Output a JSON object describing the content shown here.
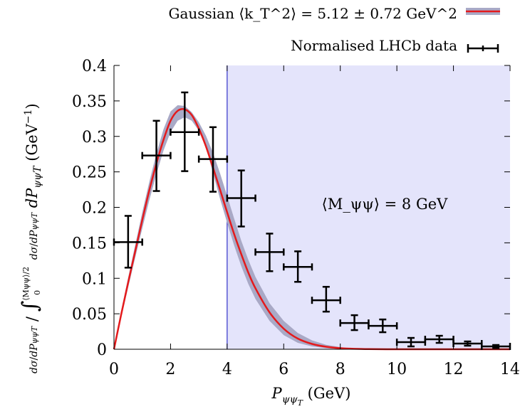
{
  "chart_data": {
    "type": "line",
    "xlabel": "P_{ψψT} (GeV)",
    "ylabel": "dσ/dP_{ψψT} / ∫_0^{⟨Mψψ⟩/2} dσ/dP_{ψψT} dP_{ψψT} (GeV⁻¹)",
    "xlim": [
      0,
      14
    ],
    "ylim": [
      0,
      0.4
    ],
    "x_ticks": [
      "0",
      "2",
      "4",
      "6",
      "8",
      "10",
      "12",
      "14"
    ],
    "y_ticks": [
      "0",
      "0.05",
      "0.1",
      "0.15",
      "0.2",
      "0.25",
      "0.3",
      "0.35",
      "0.4"
    ],
    "grid": false,
    "legend_position": "top-right",
    "legend": {
      "model": "Gaussian ⟨k_T^2⟩ = 5.12 ± 0.72 GeV^2",
      "data": "Normalised LHCb data"
    },
    "shaded_region": {
      "x_from": 4,
      "x_to": 14,
      "color": "#e4e4fb",
      "edge_color": "#3232c8"
    },
    "annotation": "⟨M_ψψ⟩ = 8 GeV",
    "model_curve": {
      "name": "Gaussian ⟨k_T^2⟩ = 5.12 ± 0.72 GeV^2",
      "color": "#e41a1c",
      "band_color": "#a9a9c6",
      "x": [
        0,
        0.25,
        0.5,
        0.75,
        1.0,
        1.25,
        1.5,
        1.75,
        2.0,
        2.25,
        2.5,
        2.75,
        3.0,
        3.25,
        3.5,
        3.75,
        4.0,
        4.25,
        4.5,
        4.75,
        5.0,
        5.5,
        6.0,
        6.5,
        7.0,
        7.5,
        8.0,
        8.5,
        9.0,
        10.0,
        11.0,
        12.0,
        14.0
      ],
      "y": [
        0,
        0.048,
        0.094,
        0.138,
        0.182,
        0.224,
        0.262,
        0.295,
        0.322,
        0.336,
        0.338,
        0.33,
        0.311,
        0.286,
        0.256,
        0.225,
        0.193,
        0.162,
        0.134,
        0.108,
        0.086,
        0.052,
        0.029,
        0.015,
        0.0075,
        0.0035,
        0.0015,
        0.0006,
        0.0002,
        0.0,
        0.0,
        0.0,
        0.0
      ],
      "band_low": [
        0,
        0.044,
        0.087,
        0.129,
        0.17,
        0.21,
        0.247,
        0.28,
        0.306,
        0.322,
        0.327,
        0.322,
        0.308,
        0.285,
        0.248,
        0.212,
        0.178,
        0.146,
        0.117,
        0.092,
        0.071,
        0.04,
        0.02,
        0.009,
        0.004,
        0.0015,
        0.0005,
        0.0002,
        0.0,
        0.0,
        0.0,
        0.0,
        0.0
      ],
      "band_high": [
        0,
        0.053,
        0.101,
        0.147,
        0.193,
        0.236,
        0.276,
        0.31,
        0.335,
        0.344,
        0.343,
        0.334,
        0.32,
        0.301,
        0.277,
        0.248,
        0.216,
        0.184,
        0.153,
        0.126,
        0.102,
        0.065,
        0.04,
        0.023,
        0.0125,
        0.0063,
        0.003,
        0.0013,
        0.0005,
        0.0001,
        0.0,
        0.0,
        0.0
      ]
    },
    "data_points": {
      "name": "Normalised LHCb data",
      "color": "#000000",
      "points": [
        {
          "x": 0.5,
          "xerr": 0.5,
          "y": 0.151,
          "ylo": 0.115,
          "yhi": 0.188
        },
        {
          "x": 1.5,
          "xerr": 0.5,
          "y": 0.273,
          "ylo": 0.223,
          "yhi": 0.322
        },
        {
          "x": 2.5,
          "xerr": 0.5,
          "y": 0.306,
          "ylo": 0.251,
          "yhi": 0.362
        },
        {
          "x": 3.5,
          "xerr": 0.5,
          "y": 0.268,
          "ylo": 0.222,
          "yhi": 0.313
        },
        {
          "x": 4.5,
          "xerr": 0.5,
          "y": 0.213,
          "ylo": 0.173,
          "yhi": 0.252
        },
        {
          "x": 5.5,
          "xerr": 0.5,
          "y": 0.137,
          "ylo": 0.11,
          "yhi": 0.163
        },
        {
          "x": 6.5,
          "xerr": 0.5,
          "y": 0.116,
          "ylo": 0.095,
          "yhi": 0.138
        },
        {
          "x": 7.5,
          "xerr": 0.5,
          "y": 0.069,
          "ylo": 0.053,
          "yhi": 0.088
        },
        {
          "x": 8.5,
          "xerr": 0.5,
          "y": 0.037,
          "ylo": 0.027,
          "yhi": 0.048
        },
        {
          "x": 9.5,
          "xerr": 0.5,
          "y": 0.033,
          "ylo": 0.024,
          "yhi": 0.042
        },
        {
          "x": 10.5,
          "xerr": 0.5,
          "y": 0.01,
          "ylo": 0.004,
          "yhi": 0.016
        },
        {
          "x": 11.5,
          "xerr": 0.5,
          "y": 0.014,
          "ylo": 0.009,
          "yhi": 0.019
        },
        {
          "x": 12.5,
          "xerr": 0.5,
          "y": 0.008,
          "ylo": 0.005,
          "yhi": 0.011
        },
        {
          "x": 13.5,
          "xerr": 0.5,
          "y": 0.004,
          "ylo": 0.002,
          "yhi": 0.006
        }
      ]
    }
  }
}
